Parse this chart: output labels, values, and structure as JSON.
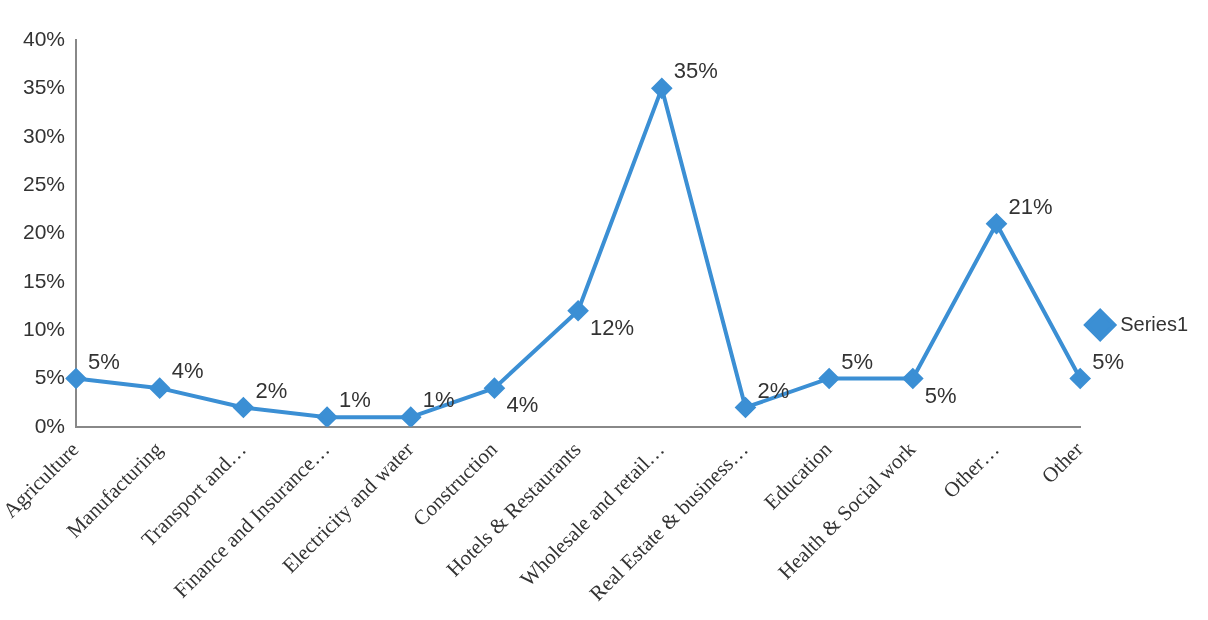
{
  "chart_data": {
    "type": "line",
    "categories": [
      "Agriculture",
      "Manufacturing",
      "Transport and…",
      "Finance and Insurance…",
      "Electricity and water",
      "Construction",
      "Hotels & Restaurants",
      "Wholesale and retail…",
      "Real Estate & business…",
      "Education",
      "Health & Social work",
      "Other…",
      "Other"
    ],
    "series": [
      {
        "name": "Series1",
        "color": "#3b8fd4",
        "values": [
          5,
          4,
          2,
          1,
          1,
          4,
          12,
          35,
          2,
          5,
          5,
          21,
          5
        ],
        "value_labels": [
          "5%",
          "4%",
          "2%",
          "1%",
          "1%",
          "4%",
          "12%",
          "35%",
          "2%",
          "5%",
          "5%",
          "21%",
          "5%"
        ]
      }
    ],
    "ylim": [
      0,
      40
    ],
    "yticks": [
      {
        "value": 0,
        "label": "0%"
      },
      {
        "value": 5,
        "label": "5%"
      },
      {
        "value": 10,
        "label": "10%"
      },
      {
        "value": 15,
        "label": "15%"
      },
      {
        "value": 20,
        "label": "20%"
      },
      {
        "value": 25,
        "label": "25%"
      },
      {
        "value": 30,
        "label": "30%"
      },
      {
        "value": 35,
        "label": "35%"
      },
      {
        "value": 40,
        "label": "40%"
      }
    ],
    "grid": false,
    "legend": "right",
    "marker": "diamond",
    "line_style": "solid"
  }
}
